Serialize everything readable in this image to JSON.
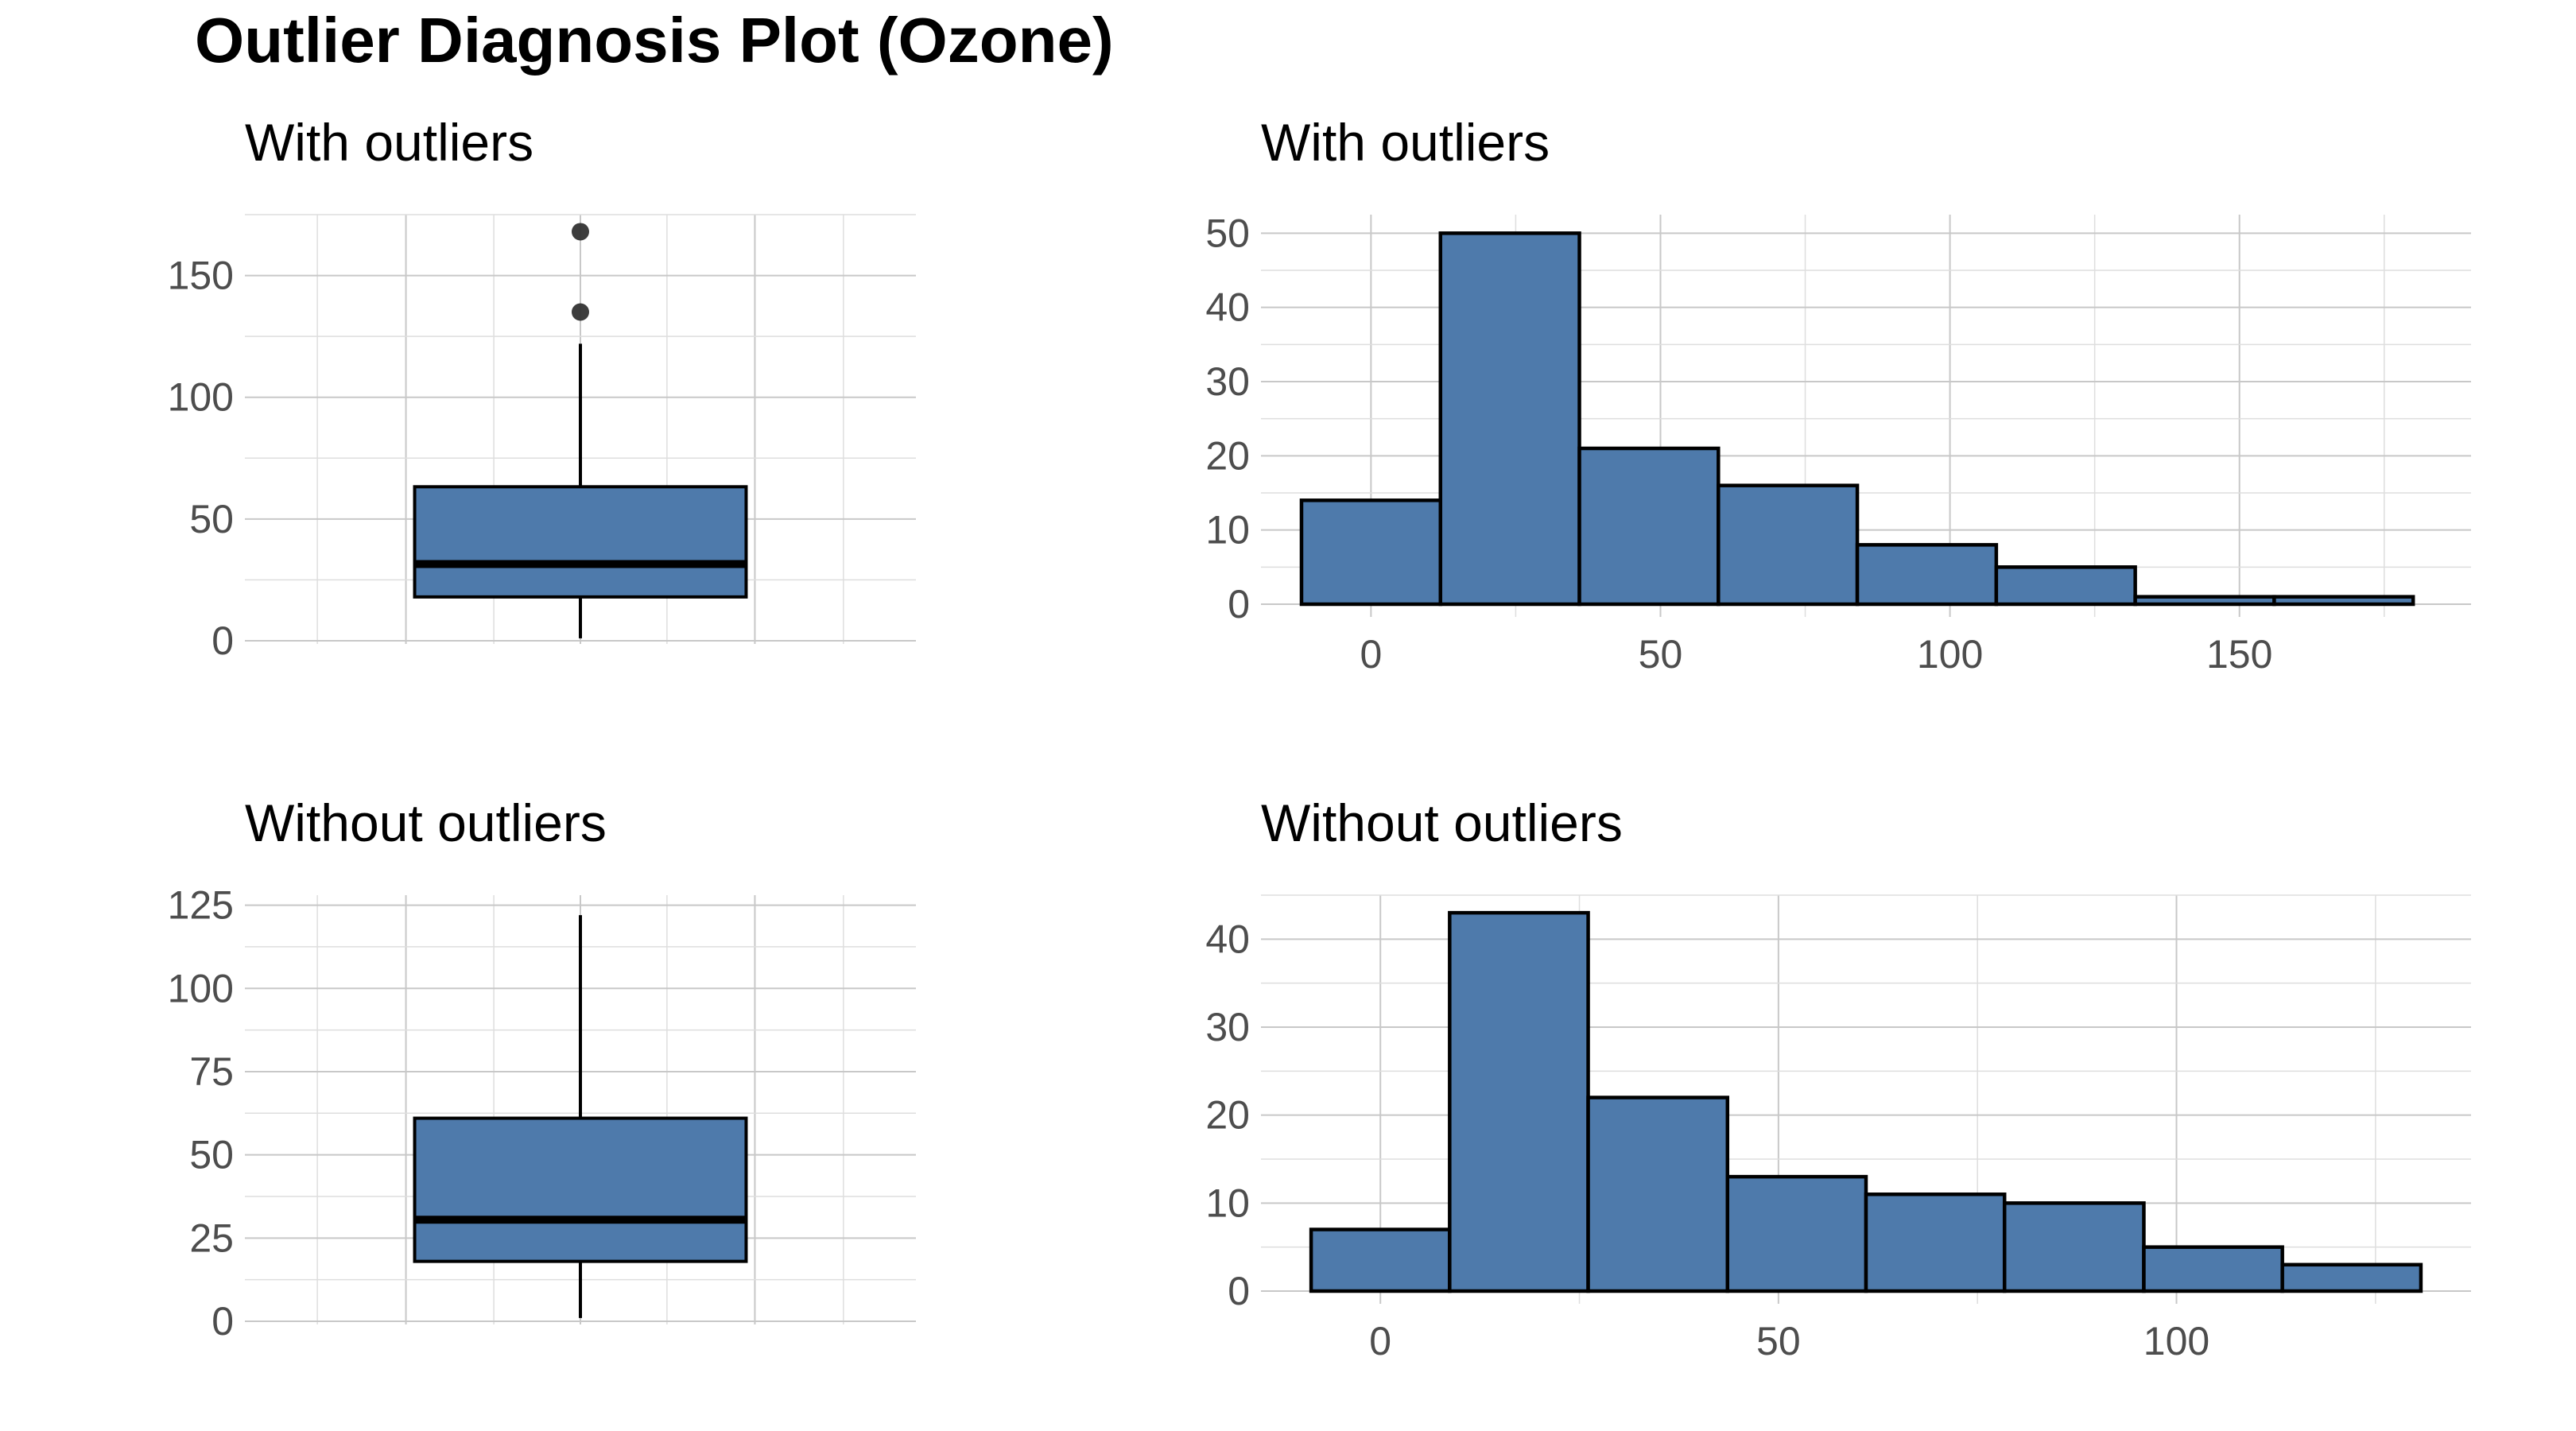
{
  "figure_title": "Outlier Diagnosis Plot (Ozone)",
  "colors": {
    "fill": "#4e7aab",
    "outline": "#000000",
    "grid": "#c8c8c8",
    "tick_text": "#4d4d4d"
  },
  "chart_data": [
    {
      "id": "box_with",
      "type": "boxplot",
      "title": "With outliers",
      "ylim": [
        0,
        175
      ],
      "y_ticks": [
        0,
        50,
        100,
        150
      ],
      "stats": {
        "min": 1,
        "q1": 18,
        "median": 31.5,
        "q3": 63.25,
        "max": 122
      },
      "outliers": [
        135,
        168
      ]
    },
    {
      "id": "hist_with",
      "type": "histogram",
      "title": "With outliers",
      "xlim": [
        -19,
        190
      ],
      "ylim": [
        0,
        52.5
      ],
      "x_ticks": [
        0,
        50,
        100,
        150
      ],
      "y_ticks": [
        0,
        10,
        20,
        30,
        40,
        50
      ],
      "bins": [
        {
          "start": -12,
          "end": 12,
          "count": 14
        },
        {
          "start": 12,
          "end": 36,
          "count": 50
        },
        {
          "start": 36,
          "end": 60,
          "count": 21
        },
        {
          "start": 60,
          "end": 84,
          "count": 16
        },
        {
          "start": 84,
          "end": 108,
          "count": 8
        },
        {
          "start": 108,
          "end": 132,
          "count": 5
        },
        {
          "start": 132,
          "end": 156,
          "count": 1
        },
        {
          "start": 156,
          "end": 180,
          "count": 1
        }
      ]
    },
    {
      "id": "box_without",
      "type": "boxplot",
      "title": "Without outliers",
      "ylim": [
        0,
        128
      ],
      "y_ticks": [
        0,
        25,
        50,
        75,
        100,
        125
      ],
      "stats": {
        "min": 1,
        "q1": 18,
        "median": 30.5,
        "q3": 61,
        "max": 122
      },
      "outliers": []
    },
    {
      "id": "hist_without",
      "type": "histogram",
      "title": "Without outliers",
      "xlim": [
        -15,
        137
      ],
      "ylim": [
        0,
        45
      ],
      "x_ticks": [
        0,
        50,
        100
      ],
      "y_ticks": [
        0,
        10,
        20,
        30,
        40
      ],
      "bins": [
        {
          "start": -8.7,
          "end": 8.7,
          "count": 7
        },
        {
          "start": 8.7,
          "end": 26.1,
          "count": 43
        },
        {
          "start": 26.1,
          "end": 43.6,
          "count": 22
        },
        {
          "start": 43.6,
          "end": 61,
          "count": 13
        },
        {
          "start": 61,
          "end": 78.4,
          "count": 11
        },
        {
          "start": 78.4,
          "end": 95.9,
          "count": 10
        },
        {
          "start": 95.9,
          "end": 113.3,
          "count": 5
        },
        {
          "start": 113.3,
          "end": 130.7,
          "count": 3
        }
      ]
    }
  ]
}
